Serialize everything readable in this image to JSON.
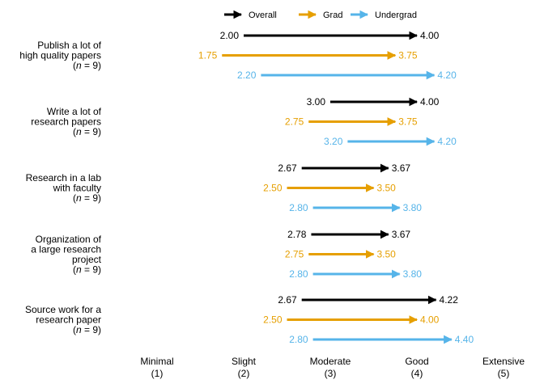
{
  "chart_data": {
    "type": "dumbbell-arrow",
    "title": "",
    "xlabel": "",
    "ylabel": "",
    "xlim": [
      1,
      5
    ],
    "legend_position": "top",
    "legend": [
      {
        "name": "Overall",
        "color": "#000000"
      },
      {
        "name": "Grad",
        "color": "#E69F00"
      },
      {
        "name": "Undergrad",
        "color": "#56B4E9"
      }
    ],
    "x_ticks": [
      {
        "value": 1,
        "label": "Minimal",
        "sub": "(1)"
      },
      {
        "value": 2,
        "label": "Slight",
        "sub": "(2)"
      },
      {
        "value": 3,
        "label": "Moderate",
        "sub": "(3)"
      },
      {
        "value": 4,
        "label": "Good",
        "sub": "(4)"
      },
      {
        "value": 5,
        "label": "Extensive",
        "sub": "(5)"
      }
    ],
    "categories": [
      {
        "label": [
          "Publish a lot of",
          "high quality papers",
          "(n = 9)"
        ],
        "series": [
          {
            "name": "Overall",
            "start": 2.0,
            "end": 4.0
          },
          {
            "name": "Grad",
            "start": 1.75,
            "end": 3.75
          },
          {
            "name": "Undergrad",
            "start": 2.2,
            "end": 4.2
          }
        ]
      },
      {
        "label": [
          "Write a lot of",
          "research papers",
          "(n = 9)"
        ],
        "series": [
          {
            "name": "Overall",
            "start": 3.0,
            "end": 4.0
          },
          {
            "name": "Grad",
            "start": 2.75,
            "end": 3.75
          },
          {
            "name": "Undergrad",
            "start": 3.2,
            "end": 4.2
          }
        ]
      },
      {
        "label": [
          "Research in a lab",
          "with faculty",
          "(n = 9)"
        ],
        "series": [
          {
            "name": "Overall",
            "start": 2.67,
            "end": 3.67
          },
          {
            "name": "Grad",
            "start": 2.5,
            "end": 3.5
          },
          {
            "name": "Undergrad",
            "start": 2.8,
            "end": 3.8
          }
        ]
      },
      {
        "label": [
          "Organization of",
          "a large research",
          "project",
          "(n = 9)"
        ],
        "series": [
          {
            "name": "Overall",
            "start": 2.78,
            "end": 3.67
          },
          {
            "name": "Grad",
            "start": 2.75,
            "end": 3.5
          },
          {
            "name": "Undergrad",
            "start": 2.8,
            "end": 3.8
          }
        ]
      },
      {
        "label": [
          "Source work for a",
          "research paper",
          "(n = 9)"
        ],
        "series": [
          {
            "name": "Overall",
            "start": 2.67,
            "end": 4.22
          },
          {
            "name": "Grad",
            "start": 2.5,
            "end": 4.0
          },
          {
            "name": "Undergrad",
            "start": 2.8,
            "end": 4.4
          }
        ]
      }
    ]
  }
}
